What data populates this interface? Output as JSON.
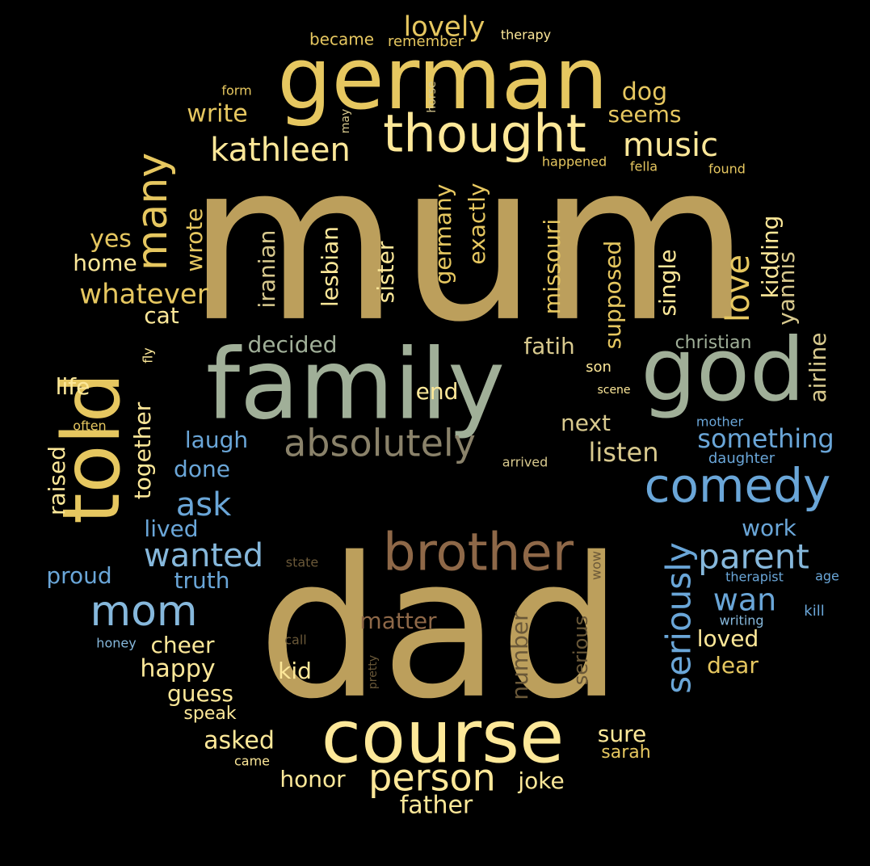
{
  "palette": {
    "background": "#000000",
    "gold": "#bc9f5c",
    "yellow": "#e6c760",
    "pale_yellow": "#fde899",
    "cream": "#f6e3a4",
    "sage": "#a0af98",
    "blue": "#6aa6d8",
    "light_blue": "#86b8dc",
    "brown": "#8e6848",
    "taupe": "#8a826a",
    "dark_brown": "#6a5838",
    "khaki": "#d8c98e"
  },
  "words": [
    {
      "text": "mum",
      "color": "gold"
    },
    {
      "text": "dad",
      "color": "gold"
    },
    {
      "text": "family",
      "color": "sage"
    },
    {
      "text": "god",
      "color": "sage"
    },
    {
      "text": "german",
      "color": "yellow"
    },
    {
      "text": "told",
      "color": "yellow"
    },
    {
      "text": "course",
      "color": "pale_yellow"
    },
    {
      "text": "brother",
      "color": "brown"
    },
    {
      "text": "thought",
      "color": "pale_yellow"
    },
    {
      "text": "comedy",
      "color": "blue"
    },
    {
      "text": "absolutely",
      "color": "taupe"
    },
    {
      "text": "mom",
      "color": "light_blue"
    },
    {
      "text": "many",
      "color": "yellow"
    },
    {
      "text": "person",
      "color": "pale_yellow"
    },
    {
      "text": "kathleen",
      "color": "pale_yellow"
    },
    {
      "text": "seriously",
      "color": "blue"
    },
    {
      "text": "parent",
      "color": "light_blue"
    },
    {
      "text": "wanted",
      "color": "light_blue"
    },
    {
      "text": "music",
      "color": "pale_yellow"
    },
    {
      "text": "love",
      "color": "yellow"
    },
    {
      "text": "ask",
      "color": "blue"
    },
    {
      "text": "lovely",
      "color": "yellow"
    },
    {
      "text": "whatever",
      "color": "yellow"
    },
    {
      "text": "wan",
      "color": "blue"
    },
    {
      "text": "something",
      "color": "blue"
    },
    {
      "text": "listen",
      "color": "khaki"
    },
    {
      "text": "write",
      "color": "yellow"
    },
    {
      "text": "dog",
      "color": "yellow"
    },
    {
      "text": "seems",
      "color": "yellow"
    },
    {
      "text": "yes",
      "color": "yellow"
    },
    {
      "text": "home",
      "color": "pale_yellow"
    },
    {
      "text": "wrote",
      "color": "yellow"
    },
    {
      "text": "iranian",
      "color": "khaki"
    },
    {
      "text": "lesbian",
      "color": "pale_yellow"
    },
    {
      "text": "sister",
      "color": "pale_yellow"
    },
    {
      "text": "germany",
      "color": "yellow"
    },
    {
      "text": "exactly",
      "color": "yellow"
    },
    {
      "text": "missouri",
      "color": "yellow"
    },
    {
      "text": "supposed",
      "color": "yellow"
    },
    {
      "text": "single",
      "color": "pale_yellow"
    },
    {
      "text": "kidding",
      "color": "pale_yellow"
    },
    {
      "text": "yannis",
      "color": "khaki"
    },
    {
      "text": "airline",
      "color": "khaki"
    },
    {
      "text": "cat",
      "color": "pale_yellow"
    },
    {
      "text": "decided",
      "color": "sage"
    },
    {
      "text": "fatih",
      "color": "khaki"
    },
    {
      "text": "christian",
      "color": "sage"
    },
    {
      "text": "life",
      "color": "pale_yellow"
    },
    {
      "text": "end",
      "color": "pale_yellow"
    },
    {
      "text": "next",
      "color": "khaki"
    },
    {
      "text": "laugh",
      "color": "blue"
    },
    {
      "text": "done",
      "color": "blue"
    },
    {
      "text": "together",
      "color": "pale_yellow"
    },
    {
      "text": "raised",
      "color": "pale_yellow"
    },
    {
      "text": "lived",
      "color": "blue"
    },
    {
      "text": "work",
      "color": "blue"
    },
    {
      "text": "truth",
      "color": "blue"
    },
    {
      "text": "proud",
      "color": "blue"
    },
    {
      "text": "matter",
      "color": "brown"
    },
    {
      "text": "number",
      "color": "dark_brown"
    },
    {
      "text": "serious",
      "color": "dark_brown"
    },
    {
      "text": "cheer",
      "color": "pale_yellow"
    },
    {
      "text": "happy",
      "color": "pale_yellow"
    },
    {
      "text": "kid",
      "color": "pale_yellow"
    },
    {
      "text": "guess",
      "color": "pale_yellow"
    },
    {
      "text": "loved",
      "color": "pale_yellow"
    },
    {
      "text": "dear",
      "color": "yellow"
    },
    {
      "text": "sure",
      "color": "pale_yellow"
    },
    {
      "text": "sarah",
      "color": "yellow"
    },
    {
      "text": "asked",
      "color": "pale_yellow"
    },
    {
      "text": "honor",
      "color": "pale_yellow"
    },
    {
      "text": "joke",
      "color": "pale_yellow"
    },
    {
      "text": "father",
      "color": "pale_yellow"
    },
    {
      "text": "speak",
      "color": "pale_yellow"
    },
    {
      "text": "became",
      "color": "yellow"
    },
    {
      "text": "remember",
      "color": "yellow"
    },
    {
      "text": "therapy",
      "color": "pale_yellow"
    },
    {
      "text": "form",
      "color": "yellow"
    },
    {
      "text": "horse",
      "color": "khaki"
    },
    {
      "text": "may",
      "color": "khaki"
    },
    {
      "text": "happened",
      "color": "yellow"
    },
    {
      "text": "fella",
      "color": "yellow"
    },
    {
      "text": "found",
      "color": "yellow"
    },
    {
      "text": "fly",
      "color": "pale_yellow"
    },
    {
      "text": "son",
      "color": "pale_yellow"
    },
    {
      "text": "scene",
      "color": "pale_yellow"
    },
    {
      "text": "often",
      "color": "yellow"
    },
    {
      "text": "mother",
      "color": "blue"
    },
    {
      "text": "arrived",
      "color": "khaki"
    },
    {
      "text": "daughter",
      "color": "blue"
    },
    {
      "text": "state",
      "color": "dark_brown"
    },
    {
      "text": "wow",
      "color": "dark_brown"
    },
    {
      "text": "therapist",
      "color": "blue"
    },
    {
      "text": "age",
      "color": "blue"
    },
    {
      "text": "kill",
      "color": "blue"
    },
    {
      "text": "writing",
      "color": "light_blue"
    },
    {
      "text": "honey",
      "color": "light_blue"
    },
    {
      "text": "call",
      "color": "dark_brown"
    },
    {
      "text": "pretty",
      "color": "dark_brown"
    },
    {
      "text": "came",
      "color": "pale_yellow"
    }
  ]
}
